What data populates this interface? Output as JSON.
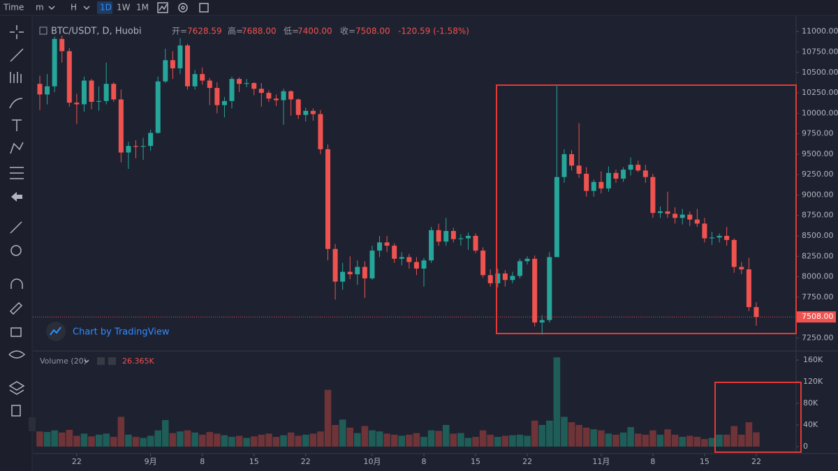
{
  "toolbar": {
    "items": [
      "Time",
      "m",
      "H",
      "1D",
      "1W",
      "1M"
    ]
  },
  "header": {
    "symbol": "BTC/USDT, D, Huobi",
    "open_label": "开=",
    "open": "7628.59",
    "high_label": "高=",
    "high": "7688.00",
    "low_label": "低=",
    "low": "7400.00",
    "close_label": "收=",
    "close": "7508.00",
    "change": "-120.59 (-1.58%)"
  },
  "chart_data": {
    "type": "candlestick",
    "watermark": "Chart by TradingView",
    "up_color": "#26a69a",
    "down_color": "#ef5350",
    "volume_up_color": "#1f5e58",
    "volume_down_color": "#6e3438",
    "open": [
      10360,
      10230,
      10330,
      10910,
      10760,
      10130,
      10110,
      10400,
      10140,
      10150,
      10360,
      10170,
      9520,
      9600,
      9590,
      9600,
      9760,
      10390,
      10650,
      10550,
      10830,
      10330,
      10480,
      10400,
      10310,
      10100,
      10150,
      10420,
      10360,
      10370,
      10300,
      10250,
      10180,
      10160,
      10270,
      10170,
      9980,
      10030,
      9990,
      9560,
      8340,
      7940,
      8060,
      8030,
      8120,
      7980,
      8320,
      8420,
      8380,
      8220,
      8240,
      8180,
      8100,
      8200,
      8570,
      8430,
      8560,
      8460,
      8470,
      8500,
      8320,
      8020,
      7920,
      8040,
      7960,
      8010,
      8190,
      8220,
      7440,
      7470,
      8240,
      9220,
      9500,
      9360,
      9260,
      9050,
      9160,
      9080,
      9270,
      9200,
      9310,
      9370,
      9300,
      9220,
      8780,
      8800,
      8770,
      8720,
      8760,
      8700,
      8650,
      8470,
      8480,
      8500,
      8450,
      8120,
      8090,
      7628.59
    ],
    "high": [
      10460,
      10480,
      10940,
      10950,
      10800,
      10240,
      10450,
      10420,
      10330,
      10620,
      10380,
      10290,
      9650,
      9670,
      9700,
      9800,
      10450,
      10790,
      10760,
      10920,
      10850,
      10530,
      10560,
      10430,
      10380,
      10200,
      10450,
      10440,
      10420,
      10380,
      10370,
      10280,
      10230,
      10300,
      10280,
      10180,
      10070,
      10060,
      10040,
      9620,
      8400,
      8170,
      8250,
      8200,
      8190,
      8380,
      8500,
      8500,
      8410,
      8300,
      8280,
      8240,
      8230,
      8610,
      8650,
      8720,
      8600,
      8520,
      8540,
      8530,
      8360,
      8090,
      8100,
      8080,
      8060,
      8220,
      8250,
      8260,
      7530,
      8300,
      10350,
      9560,
      9550,
      9880,
      9340,
      9190,
      9290,
      9350,
      9310,
      9340,
      9460,
      9420,
      9370,
      9260,
      8860,
      9040,
      8850,
      8830,
      8800,
      8830,
      8720,
      8550,
      8530,
      8610,
      8470,
      8180,
      8230,
      7688
    ],
    "low": [
      10040,
      10110,
      10260,
      10620,
      10080,
      9870,
      10020,
      10050,
      10030,
      10110,
      10140,
      9400,
      9320,
      9450,
      9430,
      9540,
      9750,
      10370,
      10420,
      10480,
      10290,
      10290,
      10350,
      10100,
      10000,
      9950,
      10060,
      10260,
      10320,
      10220,
      10080,
      10140,
      10090,
      9860,
      9970,
      9930,
      9900,
      9910,
      9500,
      8200,
      7720,
      7840,
      7970,
      7900,
      7740,
      7960,
      8240,
      8300,
      8170,
      8140,
      8100,
      8020,
      7880,
      8170,
      8380,
      8380,
      8420,
      8380,
      8330,
      8290,
      7990,
      7880,
      7870,
      7880,
      7920,
      7980,
      8150,
      7390,
      7290,
      7440,
      8240,
      9150,
      9300,
      9210,
      8980,
      8980,
      9020,
      9040,
      9150,
      9160,
      9240,
      9280,
      9150,
      8720,
      8720,
      8720,
      8650,
      8640,
      8620,
      8610,
      8420,
      8390,
      8420,
      8380,
      8050,
      8030,
      7580,
      7400
    ],
    "close": [
      10230,
      10330,
      10910,
      10760,
      10130,
      10110,
      10400,
      10140,
      10150,
      10360,
      10170,
      9520,
      9600,
      9590,
      9600,
      9760,
      10390,
      10650,
      10550,
      10830,
      10330,
      10480,
      10400,
      10310,
      10100,
      10150,
      10420,
      10360,
      10370,
      10300,
      10250,
      10180,
      10160,
      10270,
      10170,
      9980,
      10030,
      9990,
      9560,
      8340,
      7940,
      8060,
      8030,
      8120,
      7980,
      8320,
      8420,
      8380,
      8220,
      8240,
      8180,
      8100,
      8200,
      8570,
      8430,
      8560,
      8460,
      8470,
      8500,
      8320,
      8020,
      7920,
      8040,
      7960,
      8010,
      8190,
      8220,
      7440,
      7470,
      8240,
      9220,
      9500,
      9360,
      9260,
      9050,
      9160,
      9080,
      9270,
      9200,
      9310,
      9370,
      9300,
      9220,
      8780,
      8800,
      8770,
      8720,
      8760,
      8700,
      8650,
      8470,
      8480,
      8500,
      8450,
      8120,
      8090,
      7628.59,
      7508
    ],
    "volume": [
      28000,
      27000,
      30000,
      26000,
      31000,
      20000,
      24000,
      19000,
      22000,
      24000,
      18000,
      55000,
      22000,
      18000,
      16000,
      20000,
      30000,
      49000,
      25000,
      28000,
      30000,
      26000,
      22000,
      27000,
      24000,
      21000,
      18000,
      20000,
      16000,
      19000,
      22000,
      24000,
      18000,
      21000,
      26000,
      20000,
      22000,
      24000,
      28000,
      105000,
      40000,
      50000,
      35000,
      25000,
      38000,
      30000,
      28000,
      24000,
      22000,
      20000,
      22000,
      25000,
      18000,
      30000,
      29000,
      40000,
      24000,
      25000,
      16000,
      18000,
      30000,
      22000,
      18000,
      20000,
      21000,
      22000,
      20000,
      48000,
      40000,
      48000,
      165000,
      55000,
      45000,
      40000,
      35000,
      32000,
      30000,
      24000,
      22000,
      26000,
      36000,
      24000,
      22000,
      30000,
      22000,
      32000,
      22000,
      18000,
      20000,
      18000,
      14000,
      16000,
      22000,
      22000,
      38000,
      22000,
      45000,
      26365
    ],
    "ylim": [
      7100,
      11130
    ],
    "yticks": [
      {
        "value": 7250,
        "label": "7250.00"
      },
      {
        "value": 7500,
        "label": "7500.00"
      },
      {
        "value": 7750,
        "label": "7750.00"
      },
      {
        "value": 8000,
        "label": "8000.00"
      },
      {
        "value": 8250,
        "label": "8250.00"
      },
      {
        "value": 8500,
        "label": "8500.00"
      },
      {
        "value": 8750,
        "label": "8750.00"
      },
      {
        "value": 9000,
        "label": "9000.00"
      },
      {
        "value": 9250,
        "label": "9250.00"
      },
      {
        "value": 9500,
        "label": "9500.00"
      },
      {
        "value": 9750,
        "label": "9750.00"
      },
      {
        "value": 10000,
        "label": "10000.00"
      },
      {
        "value": 10250,
        "label": "10250.00"
      },
      {
        "value": 10500,
        "label": "10500.00"
      },
      {
        "value": 10750,
        "label": "10750.00"
      },
      {
        "value": 11000,
        "label": "11000.00"
      }
    ],
    "last_price": {
      "value": 7508,
      "label": "7508.00"
    },
    "volume_title": "Volume (20)",
    "volume_value": "26.365K",
    "volume_ylim": [
      0,
      171600
    ],
    "volume_yticks": [
      0,
      {
        "value": 40000,
        "label": "40K"
      },
      {
        "value": 80000,
        "label": "80K"
      },
      {
        "value": 120000,
        "label": "120K"
      },
      {
        "value": 160000,
        "label": "160K"
      }
    ],
    "xticks": [
      {
        "value": 5,
        "label": "22"
      },
      {
        "value": 15,
        "label": "9月"
      },
      {
        "value": 22,
        "label": "8"
      },
      {
        "value": 29,
        "label": "15"
      },
      {
        "value": 36,
        "label": "22"
      },
      {
        "value": 45,
        "label": "10月"
      },
      {
        "value": 52,
        "label": "8"
      },
      {
        "value": 59,
        "label": "15"
      },
      {
        "value": 66,
        "label": "22"
      },
      {
        "value": 76,
        "label": "11月"
      },
      {
        "value": 83,
        "label": "8"
      },
      {
        "value": 90,
        "label": "15"
      },
      {
        "value": 97,
        "label": "22"
      }
    ]
  }
}
